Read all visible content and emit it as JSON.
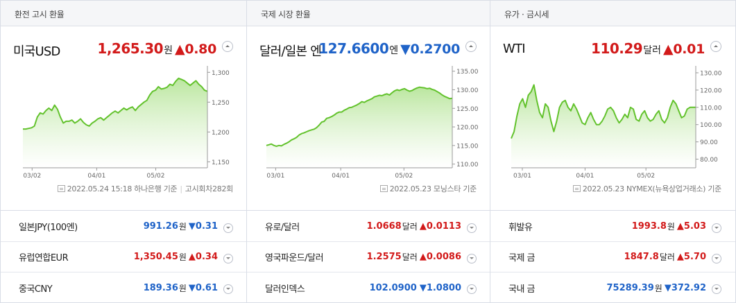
{
  "panels": [
    {
      "header": "환전 고시 환율",
      "main": {
        "name": "미국USD",
        "value": "1,265.30",
        "unit": "원",
        "arrow": "▲",
        "change": "0.80",
        "dir": "up"
      },
      "footer": {
        "date": "2022.05.24 15:18 하나은행 기준",
        "extra": "고시회차282회"
      },
      "rows": [
        {
          "name": "일본JPY(100엔)",
          "value": "991.26",
          "unit": "원",
          "arrow": "▼",
          "change": "0.31",
          "dir": "down"
        },
        {
          "name": "유럽연합EUR",
          "value": "1,350.45",
          "unit": "원",
          "arrow": "▲",
          "change": "0.34",
          "dir": "up"
        },
        {
          "name": "중국CNY",
          "value": "189.36",
          "unit": "원",
          "arrow": "▼",
          "change": "0.61",
          "dir": "down"
        }
      ]
    },
    {
      "header": "국제 시장 환율",
      "main": {
        "name": "달러/일본 엔",
        "value": "127.6600",
        "unit": "엔",
        "arrow": "▼",
        "change": "0.2700",
        "dir": "down"
      },
      "footer": {
        "date": "2022.05.23 모닝스타 기준",
        "extra": ""
      },
      "rows": [
        {
          "name": "유로/달러",
          "value": "1.0668",
          "unit": "달러",
          "arrow": "▲",
          "change": "0.0113",
          "dir": "up"
        },
        {
          "name": "영국파운드/달러",
          "value": "1.2575",
          "unit": "달러",
          "arrow": "▲",
          "change": "0.0086",
          "dir": "up"
        },
        {
          "name": "달러인덱스",
          "value": "102.0900",
          "unit": "",
          "arrow": "▼",
          "change": "1.0800",
          "dir": "down"
        }
      ]
    },
    {
      "header": "유가 · 금시세",
      "main": {
        "name": "WTI",
        "value": "110.29",
        "unit": "달러",
        "arrow": "▲",
        "change": "0.01",
        "dir": "up"
      },
      "footer": {
        "date": "2022.05.23 NYMEX(뉴욕상업거래소) 기준",
        "extra": ""
      },
      "rows": [
        {
          "name": "휘발유",
          "value": "1993.8",
          "unit": "원",
          "arrow": "▲",
          "change": "5.03",
          "dir": "up"
        },
        {
          "name": "국제 금",
          "value": "1847.8",
          "unit": "달러",
          "arrow": "▲",
          "change": "5.70",
          "dir": "up"
        },
        {
          "name": "국내 금",
          "value": "75289.39",
          "unit": "원",
          "arrow": "▼",
          "change": "372.92",
          "dir": "down"
        }
      ]
    }
  ],
  "colors": {
    "up": "#d21a1a",
    "down": "#1f63c8",
    "line": "#62c22c"
  },
  "chart_data": [
    {
      "type": "area",
      "xticks": [
        "03/02",
        "04/01",
        "05/02"
      ],
      "yticks": [
        "1,300",
        "1,250",
        "1,200",
        "1,150"
      ],
      "ylim": [
        1140,
        1305
      ],
      "y": [
        1205,
        1205,
        1206,
        1207,
        1210,
        1225,
        1232,
        1230,
        1236,
        1240,
        1236,
        1245,
        1238,
        1225,
        1215,
        1218,
        1218,
        1220,
        1215,
        1218,
        1222,
        1216,
        1212,
        1210,
        1215,
        1218,
        1222,
        1224,
        1220,
        1224,
        1228,
        1232,
        1235,
        1232,
        1236,
        1240,
        1237,
        1240,
        1242,
        1236,
        1242,
        1246,
        1250,
        1253,
        1262,
        1268,
        1270,
        1276,
        1272,
        1273,
        1275,
        1280,
        1278,
        1285,
        1290,
        1288,
        1286,
        1282,
        1278,
        1282,
        1286,
        1280,
        1276,
        1270,
        1268
      ]
    },
    {
      "type": "area",
      "xticks": [
        "03/01",
        "04/01",
        "05/02"
      ],
      "yticks": [
        "135.00",
        "130.00",
        "125.00",
        "120.00",
        "115.00",
        "110.00"
      ],
      "ylim": [
        109,
        135.5
      ],
      "y": [
        115,
        115.2,
        115.4,
        115,
        114.8,
        115,
        114.9,
        115.3,
        115.6,
        116,
        116.5,
        116.8,
        117.2,
        117.8,
        118.2,
        118.4,
        118.7,
        119,
        119.2,
        119.4,
        119.8,
        120.5,
        121.3,
        121.5,
        122.3,
        122.5,
        122.8,
        123.2,
        123.7,
        124,
        124,
        124.5,
        124.8,
        125.2,
        125.3,
        125.6,
        125.9,
        126.3,
        126.8,
        126.6,
        127,
        127.3,
        127.6,
        128.1,
        128.3,
        128.5,
        128.4,
        128.7,
        128.9,
        128.6,
        129.2,
        129.7,
        130,
        129.8,
        130.1,
        130.3,
        129.9,
        129.6,
        129.8,
        130.2,
        130.5,
        130.7,
        130.6,
        130.5,
        130.3,
        130.4,
        130.1,
        129.9,
        129.5,
        129.1,
        128.6,
        128.2,
        127.9,
        127.6,
        127.7
      ]
    },
    {
      "type": "area",
      "xticks": [
        "03/01",
        "04/01",
        "05/02"
      ],
      "yticks": [
        "130.00",
        "120.00",
        "110.00",
        "100.00",
        "90.00",
        "80.00"
      ],
      "ylim": [
        75,
        132
      ],
      "y": [
        92,
        96,
        105,
        112,
        115,
        110,
        117,
        119,
        123,
        114,
        107,
        104,
        112,
        110,
        102,
        96,
        102,
        110,
        113,
        114,
        110,
        108,
        112,
        109,
        105,
        101,
        100,
        104,
        107,
        103,
        100,
        100,
        102,
        105,
        109,
        110,
        108,
        104,
        101,
        103,
        106,
        104,
        110,
        109,
        103,
        102,
        106,
        108,
        104,
        102,
        103,
        106,
        108,
        103,
        101,
        104,
        110,
        114,
        112,
        108,
        104,
        105,
        109,
        110,
        110,
        110
      ]
    }
  ]
}
